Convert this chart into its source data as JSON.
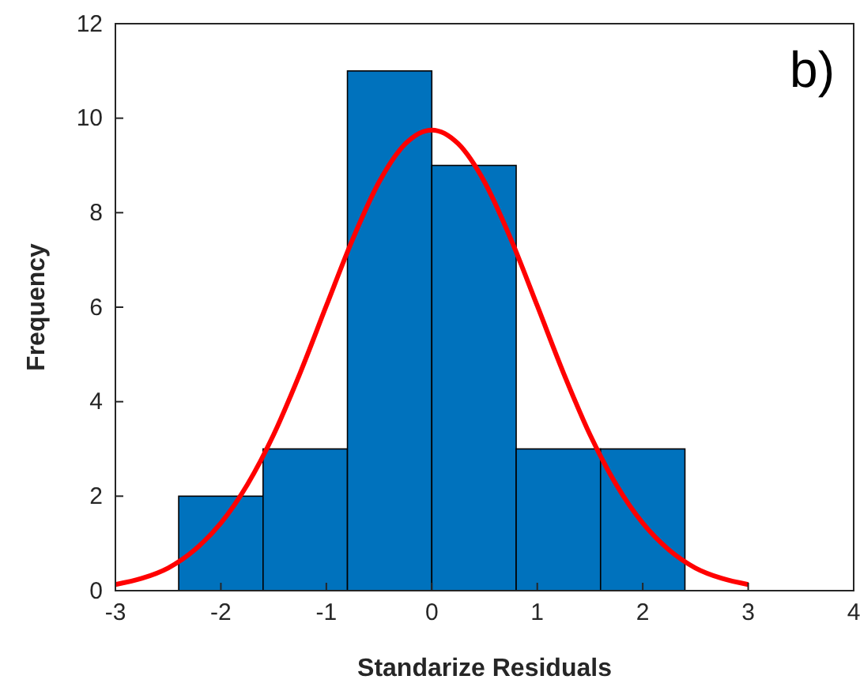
{
  "chart_data": {
    "type": "histogram",
    "xlabel": "Standarize Residuals",
    "ylabel": "Frequency",
    "annotations": [
      "b)"
    ],
    "bins": [
      -2.4,
      -1.6,
      -0.8,
      0,
      0.8,
      1.6,
      2.4
    ],
    "values": [
      2,
      3,
      11,
      9,
      3,
      3
    ],
    "color": "#0072bd",
    "series": [
      {
        "type": "line",
        "color": "#ff0000",
        "x": [
          -3,
          -2.75,
          -2.5,
          -2.25,
          -2,
          -1.75,
          -1.5,
          -1.25,
          -1,
          -0.75,
          -0.5,
          -0.25,
          0,
          0.25,
          0.5,
          0.75,
          1,
          1.25,
          1.5,
          1.75,
          2,
          2.25,
          2.5,
          2.75,
          3
        ],
        "values": [
          0.13,
          0.26,
          0.48,
          0.86,
          1.43,
          2.24,
          3.3,
          4.6,
          6.03,
          7.44,
          8.65,
          9.46,
          9.75,
          9.46,
          8.65,
          7.44,
          6.03,
          4.6,
          3.3,
          2.24,
          1.43,
          0.86,
          0.48,
          0.26,
          0.13
        ]
      }
    ],
    "xlim": [
      -3,
      4
    ],
    "xticks": [
      -3,
      -2,
      -1,
      0,
      1,
      2,
      3,
      4
    ],
    "ylim": [
      0,
      12
    ],
    "yticks": [
      0,
      2,
      4,
      6,
      8,
      10,
      12
    ],
    "grid": false
  }
}
